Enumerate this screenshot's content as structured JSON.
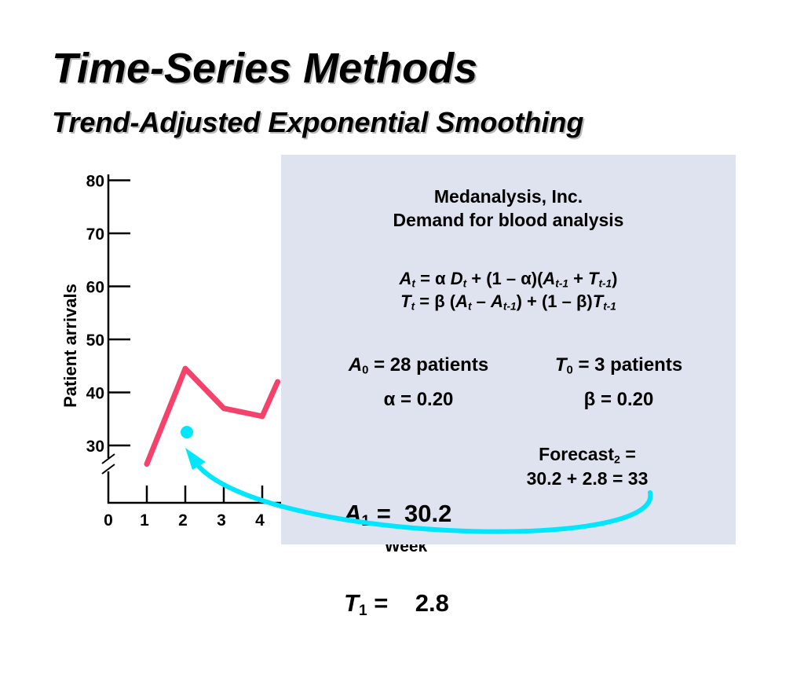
{
  "slide": {
    "title": "Time-Series Methods",
    "subtitle": "Trend-Adjusted Exponential Smoothing"
  },
  "chart_data": {
    "type": "line",
    "ylabel": "Patient arrivals",
    "xlabel": "Week",
    "yticks": [
      "80",
      "70",
      "60",
      "50",
      "40",
      "30"
    ],
    "xticks": [
      "0",
      "1",
      "2",
      "3",
      "4"
    ],
    "ylim": [
      30,
      80
    ],
    "axis_break": true,
    "series": [
      {
        "color": "#f5426a",
        "x": [
          1,
          2,
          3,
          4,
          4.4
        ],
        "y": [
          26.5,
          44.5,
          37,
          35.5,
          42
        ]
      }
    ],
    "highlight_point": {
      "x": 2,
      "y": 32.5,
      "color": "#00e6ff"
    }
  },
  "panel": {
    "heading1": "Medanalysis, Inc.",
    "heading2": "Demand for blood analysis",
    "eq1": {
      "a": "A",
      "t": "t",
      "eq": " = ",
      "alpha": "α",
      "d": "D",
      "mid": " + (1 – ",
      "close": ")(",
      "tm1": "t-1",
      "plus": " + ",
      "T": "T",
      "end": ")"
    },
    "eq2": {
      "T": "T",
      "t": "t",
      "eq": " = ",
      "beta": "β",
      "open": " (",
      "a": "A",
      "minus": " – ",
      "tm1": "t-1",
      "mid": ") + (1 – ",
      "close": ")"
    },
    "a0": {
      "sym": "A",
      "sub": "0",
      "text": " = 28 patients"
    },
    "t0": {
      "sym": "T",
      "sub": "0",
      "text": " = 3 patients"
    },
    "alpha_line": {
      "sym": "α",
      "text": " = 0.20"
    },
    "beta_line": {
      "sym": "β",
      "text": " = 0.20"
    },
    "a1": {
      "sym": "A",
      "sub": "1",
      "text": " =  30.2"
    },
    "t1": {
      "sym": "T",
      "sub": "1",
      "text": " =    2.8"
    },
    "forecast": {
      "label": "Forecast",
      "sub": "2",
      "eq": " =",
      "calc": "30.2 + 2.8 = 33"
    }
  },
  "arrow": {
    "color": "#00e6ff"
  }
}
